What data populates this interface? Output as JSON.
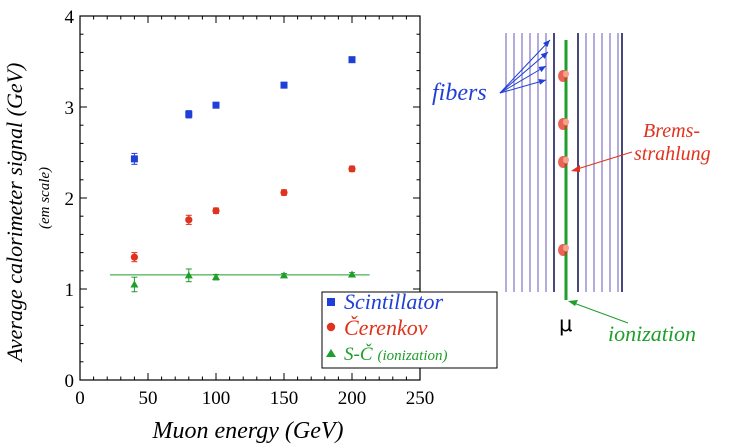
{
  "chart_data": {
    "type": "scatter",
    "xlabel": "Muon energy (GeV)",
    "ylabel": "Average calorimeter signal (GeV)",
    "ylabel_sub": "(em scale)",
    "xlim": [
      0,
      250
    ],
    "ylim": [
      0,
      4
    ],
    "x_ticks": [
      "0",
      "50",
      "100",
      "150",
      "200",
      "250"
    ],
    "y_ticks": [
      "0",
      "1",
      "2",
      "3",
      "4"
    ],
    "grid": false,
    "legend_position": "bottom-right",
    "series": [
      {
        "name": "Scintillator",
        "marker": "square",
        "color": "#1f3fd6",
        "x": [
          40,
          80,
          100,
          150,
          200
        ],
        "y": [
          2.43,
          2.92,
          3.02,
          3.24,
          3.52
        ],
        "err": [
          0.06,
          0.04,
          0.03,
          0.03,
          0.03
        ]
      },
      {
        "name": "Čerenkov",
        "marker": "circle",
        "color": "#e0321c",
        "x": [
          40,
          80,
          100,
          150,
          200
        ],
        "y": [
          1.35,
          1.76,
          1.86,
          2.06,
          2.32
        ],
        "err": [
          0.05,
          0.05,
          0.03,
          0.03,
          0.03
        ]
      },
      {
        "name": "S-Č",
        "name_suffix": "(ionization)",
        "marker": "triangle",
        "color": "#1e9e2a",
        "x": [
          40,
          80,
          100,
          150,
          200
        ],
        "y": [
          1.05,
          1.15,
          1.13,
          1.15,
          1.16
        ],
        "err": [
          0.08,
          0.07,
          0.03,
          0.02,
          0.02
        ]
      }
    ],
    "fit_line": {
      "color": "#1e9e2a",
      "x": [
        22,
        213
      ],
      "y": [
        1.155,
        1.155
      ]
    }
  },
  "diagram": {
    "fibers_label": "fibers",
    "brems_label_line1": "Brems-",
    "brems_label_line2": "strahlung",
    "muon_label": "μ",
    "ionization_label": "ionization",
    "colors": {
      "fibers": "#1f3fd6",
      "brems": "#e0321c",
      "ionization": "#1e9e2a",
      "fiber_line": "#8a80c8"
    }
  }
}
